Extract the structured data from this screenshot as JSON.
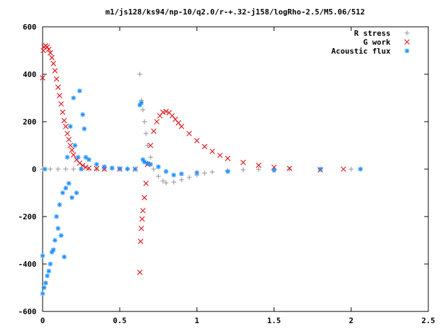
{
  "chart_data": {
    "type": "scatter",
    "title": "m1/js128/ks94/np-10/q2.0/r-+.32-j158/logRho-2.5/M5.06/512",
    "xlabel": "",
    "ylabel": "",
    "xlim": [
      0,
      2.5
    ],
    "ylim": [
      -600,
      600
    ],
    "x_ticks": [
      "0",
      "0.5",
      "1",
      "1.5",
      "2",
      "2.5"
    ],
    "y_ticks": [
      "-600",
      "-400",
      "-200",
      "0",
      "200",
      "400",
      "600"
    ],
    "grid": false,
    "legend_position": "top-right",
    "series": [
      {
        "name": "R stress",
        "marker": "plus",
        "color": "#a0a0a0",
        "x": [
          0.0,
          0.05,
          0.1,
          0.15,
          0.2,
          0.25,
          0.3,
          0.35,
          0.4,
          0.45,
          0.5,
          0.55,
          0.6,
          0.63,
          0.64,
          0.65,
          0.66,
          0.67,
          0.68,
          0.7,
          0.72,
          0.75,
          0.78,
          0.8,
          0.85,
          0.9,
          0.95,
          1.0,
          1.05,
          1.1,
          1.2,
          1.3,
          1.4,
          1.5,
          1.6,
          1.8,
          2.0,
          2.06
        ],
        "y": [
          0,
          0,
          0,
          0,
          0,
          0,
          0,
          0,
          0,
          0,
          0,
          0,
          0,
          400,
          290,
          250,
          200,
          150,
          100,
          50,
          0,
          -30,
          -50,
          -58,
          -55,
          -45,
          -35,
          -25,
          -17,
          -12,
          -6,
          -3,
          -1,
          0,
          0,
          0,
          0,
          0
        ]
      },
      {
        "name": "G work",
        "marker": "cross",
        "color": "#e41a1c",
        "x": [
          0.0,
          0.005,
          0.01,
          0.02,
          0.03,
          0.04,
          0.05,
          0.06,
          0.07,
          0.08,
          0.09,
          0.1,
          0.11,
          0.12,
          0.13,
          0.14,
          0.15,
          0.16,
          0.17,
          0.18,
          0.19,
          0.2,
          0.22,
          0.24,
          0.26,
          0.28,
          0.3,
          0.35,
          0.4,
          0.5,
          0.6,
          0.63,
          0.635,
          0.64,
          0.645,
          0.65,
          0.66,
          0.67,
          0.68,
          0.7,
          0.72,
          0.74,
          0.76,
          0.78,
          0.8,
          0.82,
          0.84,
          0.86,
          0.88,
          0.9,
          0.95,
          1.0,
          1.05,
          1.1,
          1.15,
          1.2,
          1.3,
          1.4,
          1.5,
          1.6,
          1.8,
          1.95
        ],
        "y": [
          385,
          500,
          515,
          520,
          515,
          505,
          490,
          470,
          445,
          415,
          380,
          345,
          310,
          275,
          240,
          205,
          180,
          150,
          125,
          100,
          80,
          60,
          40,
          25,
          15,
          8,
          4,
          2,
          0,
          0,
          0,
          -435,
          -305,
          -250,
          -210,
          -175,
          -120,
          -60,
          20,
          100,
          160,
          200,
          225,
          240,
          243,
          238,
          225,
          210,
          195,
          180,
          150,
          120,
          95,
          75,
          58,
          45,
          28,
          16,
          8,
          3,
          -3,
          0
        ]
      },
      {
        "name": "Acoustic flux",
        "marker": "star",
        "color": "#1e90ff",
        "x": [
          0.0,
          0.0,
          0.01,
          0.015,
          0.02,
          0.03,
          0.04,
          0.05,
          0.06,
          0.07,
          0.08,
          0.09,
          0.1,
          0.11,
          0.12,
          0.13,
          0.14,
          0.15,
          0.16,
          0.17,
          0.18,
          0.19,
          0.2,
          0.21,
          0.22,
          0.23,
          0.24,
          0.25,
          0.26,
          0.27,
          0.28,
          0.3,
          0.35,
          0.4,
          0.45,
          0.5,
          0.55,
          0.6,
          0.63,
          0.64,
          0.65,
          0.66,
          0.68,
          0.7,
          0.75,
          0.8,
          0.85,
          0.9,
          1.0,
          1.2,
          1.5,
          1.8,
          2.06
        ],
        "y": [
          -365,
          -525,
          -500,
          0,
          -480,
          -450,
          -430,
          -400,
          -350,
          -340,
          -300,
          -200,
          -250,
          -150,
          -280,
          -100,
          -370,
          -80,
          50,
          -60,
          180,
          -120,
          300,
          100,
          -100,
          50,
          330,
          0,
          230,
          170,
          50,
          40,
          20,
          10,
          5,
          2,
          1,
          0,
          270,
          280,
          40,
          30,
          25,
          20,
          10,
          -10,
          -25,
          -20,
          -15,
          -10,
          -5,
          0,
          0
        ]
      }
    ]
  }
}
